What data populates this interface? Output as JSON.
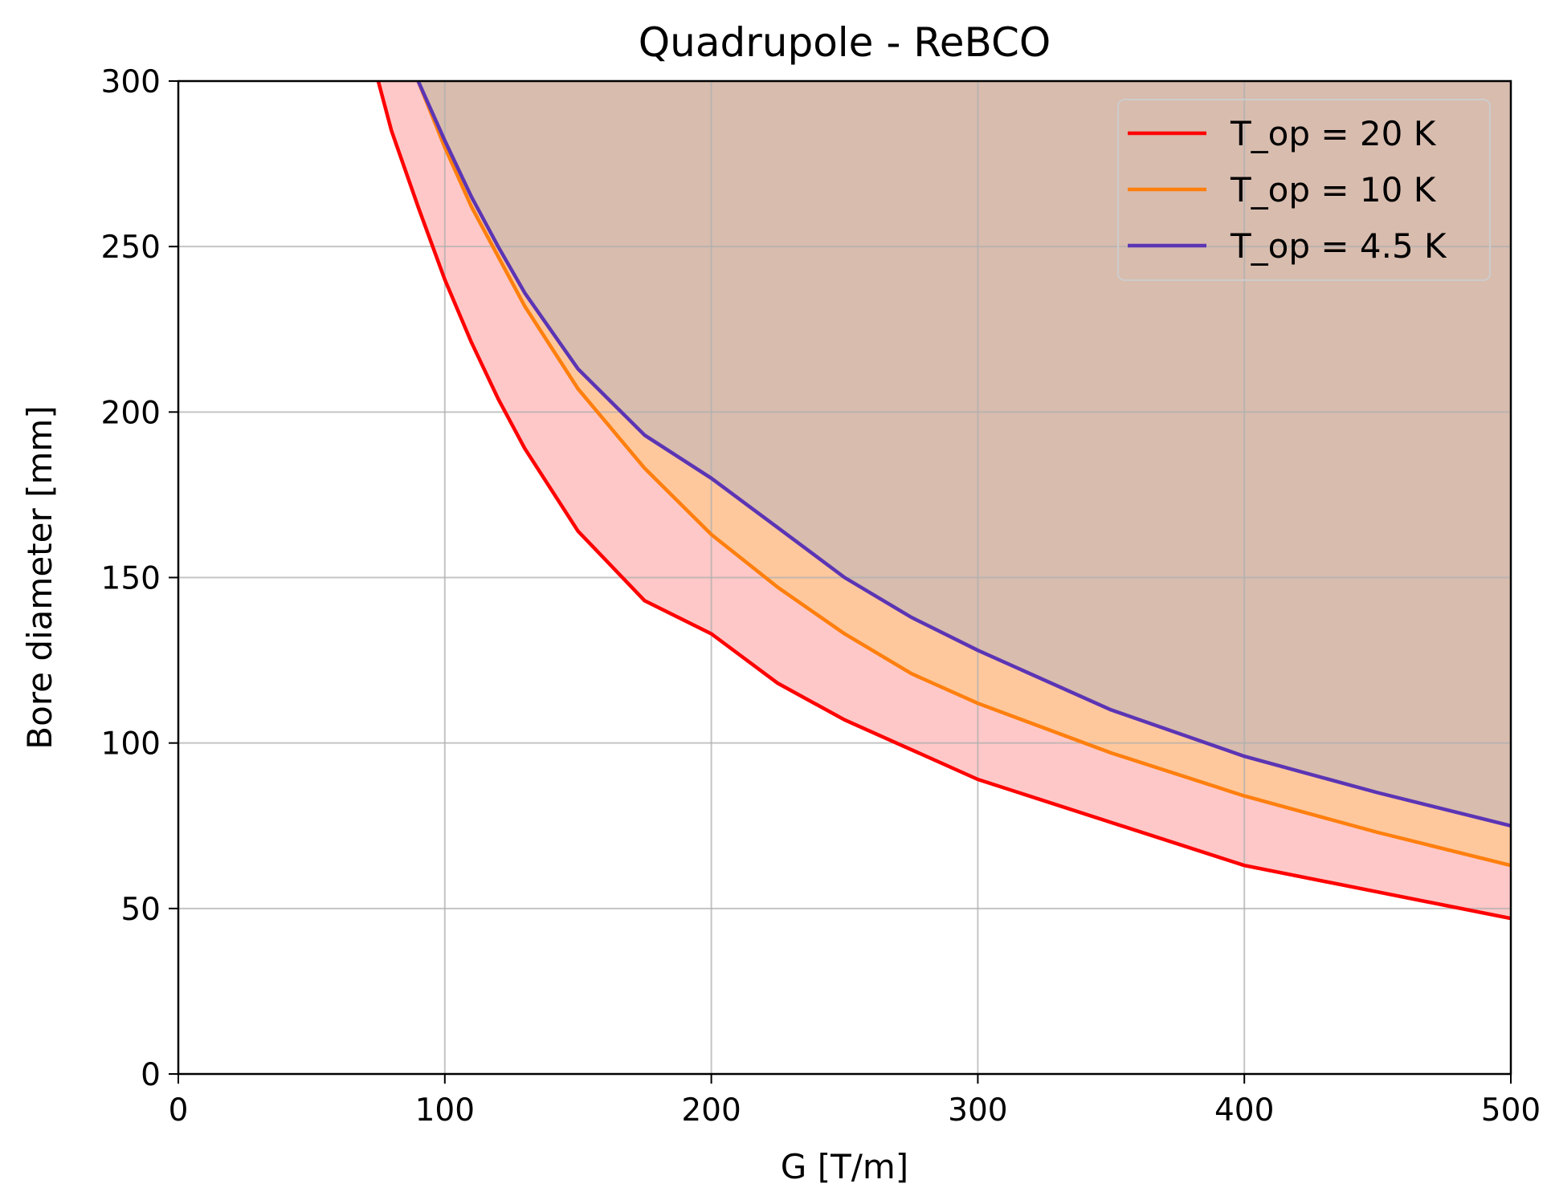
{
  "chart_data": {
    "type": "line",
    "title": "Quadrupole - ReBCO",
    "xlabel": "G [T/m]",
    "ylabel": "Bore diameter [mm]",
    "xlim": [
      0,
      500
    ],
    "ylim": [
      0,
      300
    ],
    "x_ticks": [
      "0",
      "100",
      "200",
      "300",
      "400",
      "500"
    ],
    "y_ticks": [
      "0",
      "50",
      "100",
      "150",
      "200",
      "250",
      "300"
    ],
    "grid": true,
    "legend_position": "top-right",
    "fill_between_curves": true,
    "series": [
      {
        "name": "T_op = 20 K",
        "color": "#ff0000",
        "fill_color": "#ffc8c8",
        "x": [
          75,
          80,
          90,
          100,
          110,
          120,
          130,
          150,
          175,
          200,
          225,
          250,
          275,
          300,
          350,
          400,
          450,
          500
        ],
        "y": [
          300,
          285,
          262,
          240,
          221,
          204,
          189,
          164,
          143,
          133,
          118,
          107,
          98,
          89,
          76,
          63,
          55,
          47
        ]
      },
      {
        "name": "T_op = 10 K",
        "color": "#ff7f0e",
        "fill_color": "#ffc89c",
        "x": [
          90,
          100,
          110,
          120,
          130,
          150,
          175,
          200,
          225,
          250,
          275,
          300,
          350,
          400,
          450,
          500
        ],
        "y": [
          300,
          280,
          262,
          247,
          232,
          207,
          183,
          163,
          147,
          133,
          121,
          112,
          97,
          84,
          73,
          63
        ]
      },
      {
        "name": "T_op = 4.5 K",
        "color": "#5b35b4",
        "fill_color": "#d8bcae",
        "x": [
          90,
          100,
          110,
          120,
          130,
          150,
          175,
          200,
          225,
          250,
          275,
          300,
          350,
          400,
          450,
          500
        ],
        "y": [
          300,
          282,
          265,
          250,
          236,
          213,
          193,
          180,
          165,
          150,
          138,
          128,
          110,
          96,
          85,
          75
        ]
      }
    ]
  }
}
